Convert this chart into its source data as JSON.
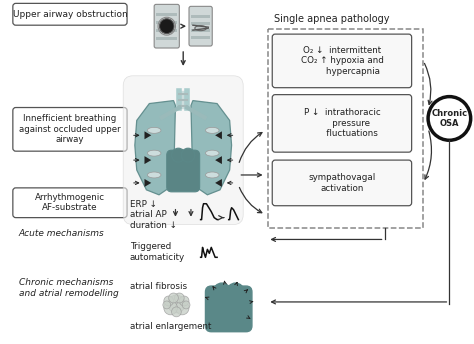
{
  "bg_color": "#ffffff",
  "text_color": "#222222",
  "labels": {
    "upper_airway": "Upper airway obstruction",
    "inefficient": "Innefficient breathing\nagainst occluded upper\nairway",
    "arrhythmogenic": "Arrhythmogenic\nAF-substrate",
    "acute": "Acute mechanisms",
    "chronic_mech": "Chronic mechanisms\nand atrial remodelling",
    "single_apnea": "Single apnea pathology",
    "chronic_osa": "Chronic\nOSA",
    "box1": "O₂ ↓  intermittent\nCO₂ ↑ hypoxia and\n        hypercapnia",
    "box2": "P ↓  intrathoracic\n       pressure\n       fluctuations",
    "box3": "sympathovagal\nactivation",
    "erp": "ERP ↓\natrial AP\nduration ↓",
    "triggered": "Triggered\nautomaticity",
    "atrial_fibrosis": "atrial fibrosis",
    "atrial_enlargement": "atrial enlargement"
  },
  "lung_color": "#8ab5b5",
  "lung_edge": "#5a8888",
  "heart_color": "#5a8888",
  "trachea_color": "#ccdddd"
}
